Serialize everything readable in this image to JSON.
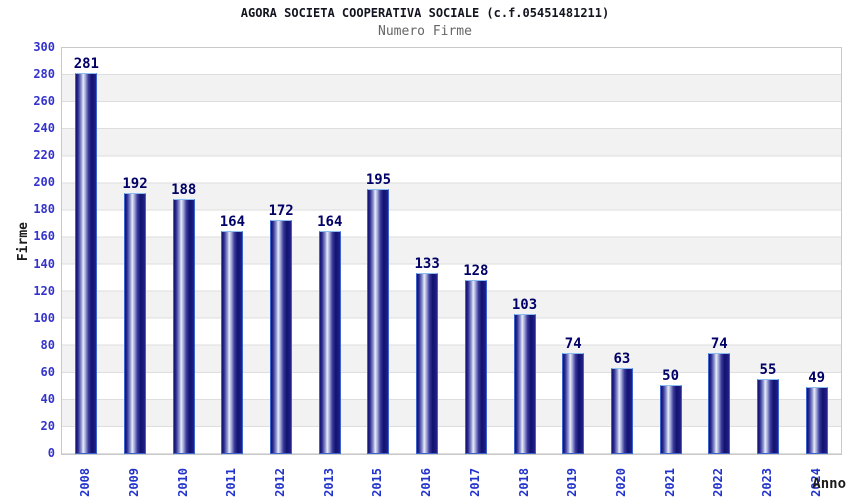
{
  "chart_data": {
    "type": "bar",
    "title": "AGORA SOCIETA COOPERATIVA SOCIALE (c.f.05451481211)",
    "subtitle": "Numero Firme",
    "xlabel": "Anno",
    "ylabel": "Firme",
    "categories": [
      "2008",
      "2009",
      "2010",
      "2011",
      "2012",
      "2013",
      "2015",
      "2016",
      "2017",
      "2018",
      "2019",
      "2020",
      "2021",
      "2022",
      "2023",
      "2024"
    ],
    "values": [
      281,
      192,
      188,
      164,
      172,
      164,
      195,
      133,
      128,
      103,
      74,
      63,
      50,
      74,
      55,
      49
    ],
    "ylim": [
      0,
      300
    ],
    "yticks": [
      0,
      20,
      40,
      60,
      80,
      100,
      120,
      140,
      160,
      180,
      200,
      220,
      240,
      260,
      280,
      300
    ],
    "grid": "horizontal alternating bands every 20 units, gridline each 20",
    "legend": "none",
    "colors": {
      "bar_dark": "#12126e",
      "bar_highlight": "#e9ecf8",
      "bar_border": "#3f63cc",
      "bar_border_top": "#8cbdf0",
      "value_label": "#000066",
      "tick_label": "#3333cc",
      "title": "#141420",
      "subtitle": "#666666",
      "axis_title": "#1c1c1c",
      "band": "#f2f2f2",
      "gridline": "#dedede",
      "plot_border": "#c9c9c9",
      "background": "#ffffff"
    }
  }
}
